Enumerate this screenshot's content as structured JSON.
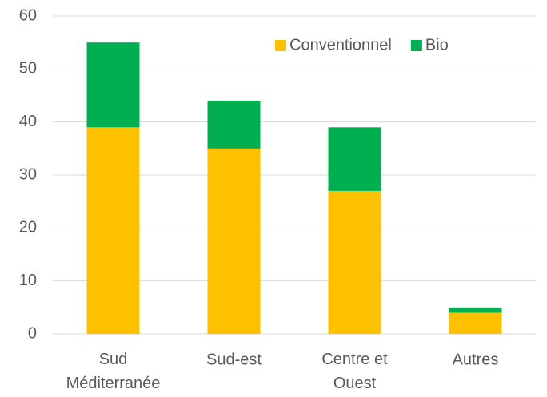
{
  "chart_data": {
    "type": "stacked_bar",
    "categories": [
      "Sud\nMéditerranée",
      "Sud-est",
      "Centre et\nOuest",
      "Autres"
    ],
    "series": [
      {
        "name": "Conventionnel",
        "color": "#ffc000",
        "values": [
          39,
          35,
          27,
          4
        ]
      },
      {
        "name": "Bio",
        "color": "#00b050",
        "values": [
          16,
          9,
          12,
          1
        ]
      }
    ],
    "ylim": [
      0,
      60
    ],
    "yticks": [
      0,
      10,
      20,
      30,
      40,
      50,
      60
    ],
    "grid": true,
    "legend": "top-right"
  }
}
